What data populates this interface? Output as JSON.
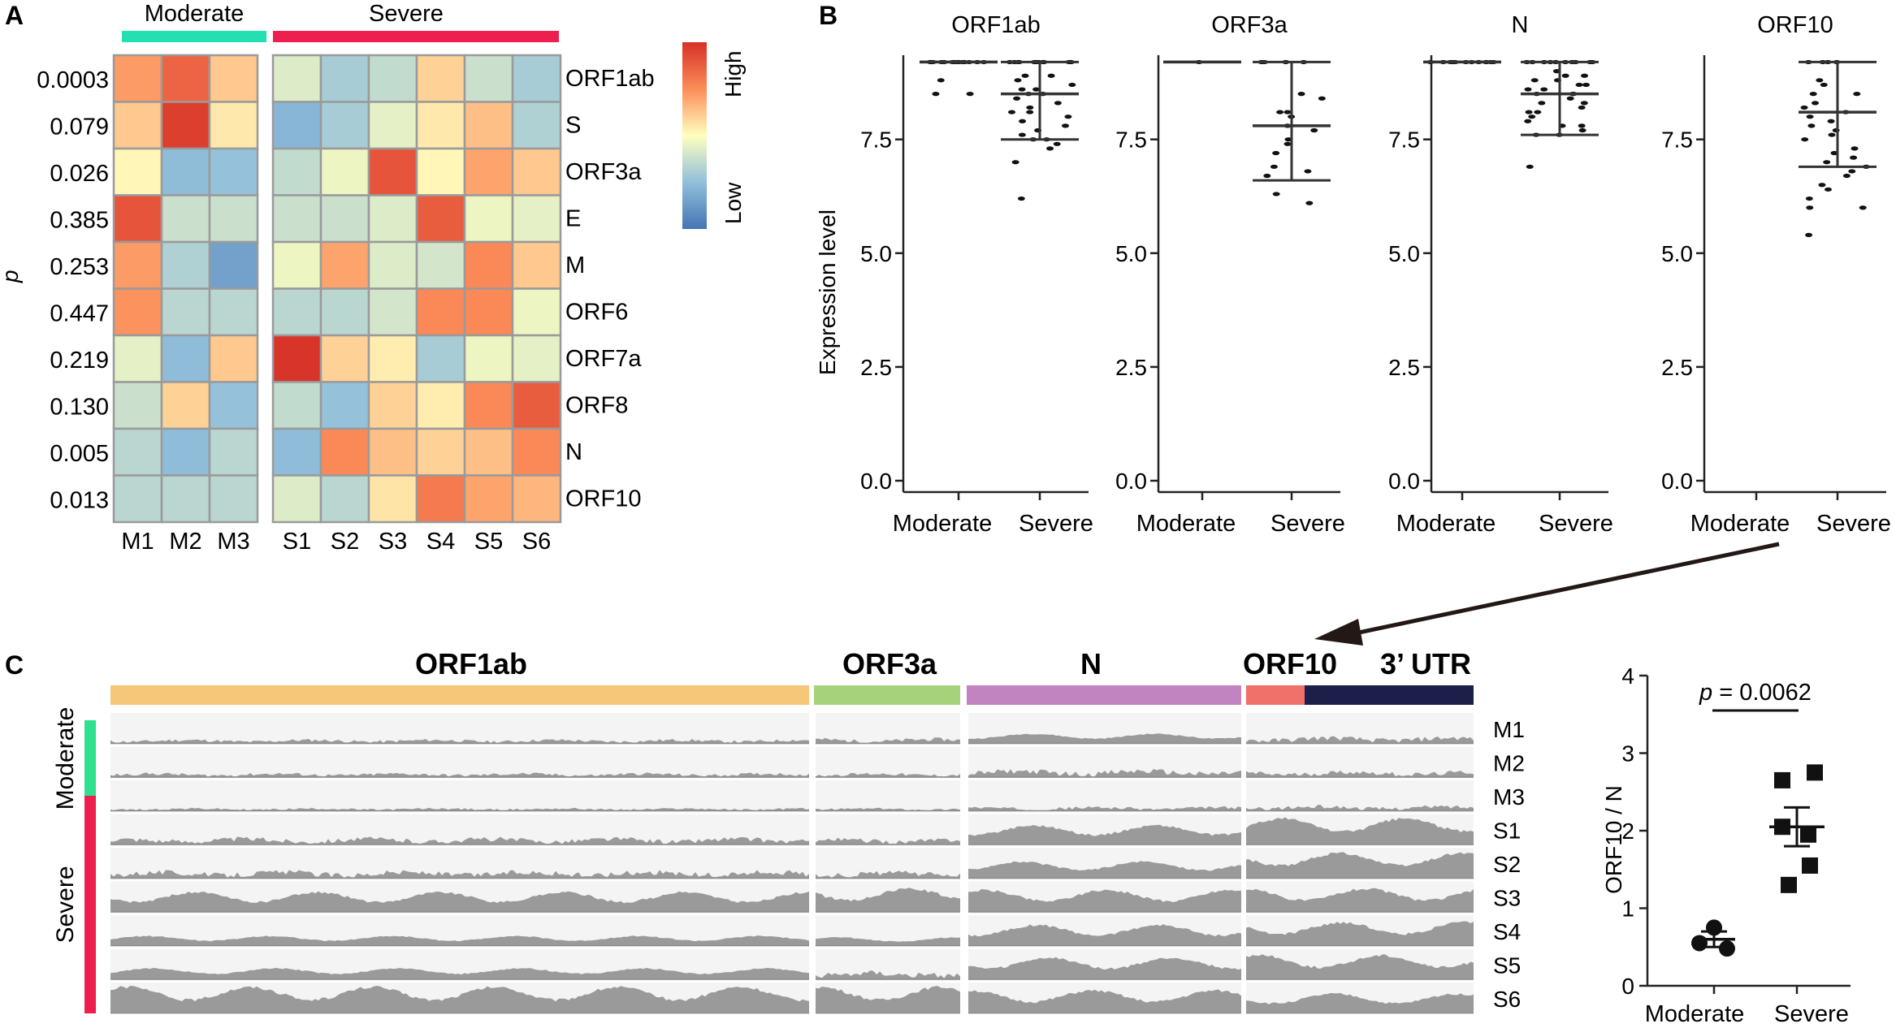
{
  "panels": {
    "a_label": "A",
    "b_label": "B",
    "c_label": "C"
  },
  "heatmap": {
    "group_moderate": "Moderate",
    "group_severe": "Severe",
    "group_moderate_color": "#22e0b0",
    "group_severe_color": "#ee1f4f",
    "p_axis_label": "p",
    "p_values": [
      "0.0003",
      "0.079",
      "0.026",
      "0.385",
      "0.253",
      "0.447",
      "0.219",
      "0.130",
      "0.005",
      "0.013"
    ],
    "genes": [
      "ORF1ab",
      "S",
      "ORF3a",
      "E",
      "M",
      "ORF6",
      "ORF7a",
      "ORF8",
      "N",
      "ORF10"
    ],
    "samples": [
      "M1",
      "M2",
      "M3",
      "S1",
      "S2",
      "S3",
      "S4",
      "S5",
      "S6"
    ],
    "legend_high": "High",
    "legend_low": "Low",
    "values": [
      [
        0.72,
        0.86,
        0.62,
        0.42,
        0.3,
        0.36,
        0.6,
        0.38,
        0.3
      ],
      [
        0.62,
        0.96,
        0.55,
        0.22,
        0.3,
        0.44,
        0.55,
        0.64,
        0.32
      ],
      [
        0.52,
        0.24,
        0.26,
        0.36,
        0.46,
        0.9,
        0.52,
        0.7,
        0.62
      ],
      [
        0.9,
        0.38,
        0.38,
        0.38,
        0.38,
        0.42,
        0.88,
        0.46,
        0.44
      ],
      [
        0.72,
        0.32,
        0.15,
        0.46,
        0.7,
        0.42,
        0.4,
        0.76,
        0.62
      ],
      [
        0.74,
        0.34,
        0.34,
        0.34,
        0.34,
        0.4,
        0.76,
        0.76,
        0.46
      ],
      [
        0.44,
        0.24,
        0.62,
        0.99,
        0.6,
        0.54,
        0.3,
        0.46,
        0.44
      ],
      [
        0.38,
        0.6,
        0.26,
        0.36,
        0.26,
        0.6,
        0.54,
        0.76,
        0.88
      ],
      [
        0.34,
        0.24,
        0.34,
        0.24,
        0.76,
        0.64,
        0.6,
        0.64,
        0.76
      ],
      [
        0.34,
        0.34,
        0.34,
        0.42,
        0.34,
        0.56,
        0.8,
        0.7,
        0.66
      ]
    ]
  },
  "dotplots": {
    "y_label": "Expression level",
    "x_categories": [
      "Moderate",
      "Severe"
    ],
    "y_ticks": [
      "0.0",
      "2.5",
      "5.0",
      "7.5"
    ],
    "ylim": [
      0,
      9.6
    ],
    "plots": [
      {
        "title": "ORF1ab",
        "moderate": {
          "mean": 9.2,
          "sd_low": 9.2,
          "sd_high": 9.2,
          "points": [
            9.2,
            9.2,
            9.2,
            9.2,
            9.2,
            9.2,
            9.2,
            9.2,
            9.2,
            9.2,
            9.2,
            9.2,
            9.2,
            9.2,
            9.2,
            8.8,
            8.5,
            8.5
          ]
        },
        "severe": {
          "mean": 8.5,
          "sd_low": 7.5,
          "sd_high": 9.2,
          "points": [
            9.2,
            9.2,
            9.2,
            9.2,
            9.2,
            9.2,
            9.2,
            9.2,
            9.2,
            9.2,
            9.2,
            9.2,
            8.9,
            8.9,
            8.8,
            8.7,
            8.6,
            8.6,
            8.5,
            8.5,
            8.4,
            8.3,
            8.2,
            8.1,
            8.1,
            8.0,
            7.9,
            7.8,
            7.7,
            7.6,
            7.5,
            7.5,
            7.4,
            7.3,
            7.0,
            6.2
          ]
        }
      },
      {
        "title": "ORF3a",
        "moderate": {
          "mean": 9.2,
          "sd_low": 9.2,
          "sd_high": 9.2,
          "points": [
            9.2
          ]
        },
        "severe": {
          "mean": 7.8,
          "sd_low": 6.6,
          "sd_high": 9.2,
          "points": [
            9.2,
            9.2,
            9.2,
            9.2,
            8.5,
            8.4,
            8.1,
            8.1,
            8.0,
            7.8,
            7.7,
            7.5,
            7.4,
            7.2,
            6.9,
            6.8,
            6.7,
            6.3,
            6.1
          ]
        }
      },
      {
        "title": "N",
        "moderate": {
          "mean": 9.2,
          "sd_low": 9.2,
          "sd_high": 9.2,
          "points": [
            9.2,
            9.2,
            9.2,
            9.2,
            9.2,
            9.2,
            9.2,
            9.2,
            9.2,
            9.2,
            9.2,
            9.2
          ]
        },
        "severe": {
          "mean": 8.5,
          "sd_low": 7.6,
          "sd_high": 9.2,
          "points": [
            9.2,
            9.2,
            9.2,
            9.2,
            9.2,
            9.2,
            9.2,
            9.2,
            9.2,
            9.2,
            9.0,
            8.9,
            8.9,
            8.8,
            8.8,
            8.7,
            8.7,
            8.6,
            8.6,
            8.5,
            8.5,
            8.5,
            8.4,
            8.3,
            8.3,
            8.2,
            8.1,
            8.1,
            8.0,
            7.9,
            7.8,
            7.8,
            7.7,
            7.6,
            7.6,
            6.9
          ]
        }
      },
      {
        "title": "ORF10",
        "moderate": {
          "mean": null,
          "sd_low": null,
          "sd_high": null,
          "points": []
        },
        "severe": {
          "mean": 8.1,
          "sd_low": 6.9,
          "sd_high": 9.2,
          "points": [
            9.2,
            9.2,
            9.2,
            9.2,
            8.8,
            8.7,
            8.5,
            8.5,
            8.3,
            8.2,
            8.1,
            8.0,
            7.9,
            7.8,
            7.7,
            7.6,
            7.5,
            7.3,
            7.2,
            7.1,
            7.0,
            6.9,
            6.8,
            6.7,
            6.5,
            6.4,
            6.2,
            6.0,
            6.0,
            5.4
          ]
        }
      }
    ]
  },
  "coverage": {
    "regions": [
      {
        "label": "ORF1ab",
        "color": "#f6c679"
      },
      {
        "label": "ORF3a",
        "color": "#a6d27c"
      },
      {
        "label": "N",
        "color": "#c283c1"
      },
      {
        "label": "ORF10",
        "color": "#f0706a"
      },
      {
        "label": "3’ UTR",
        "color": "#1c1f4a"
      }
    ],
    "tracks": [
      "M1",
      "M2",
      "M3",
      "S1",
      "S2",
      "S3",
      "S4",
      "S5",
      "S6"
    ],
    "group_moderate": "Moderate",
    "group_severe": "Severe",
    "moderate_color": "#2fe08e",
    "severe_color": "#ee1f4f",
    "depth": [
      [
        0.12,
        0.15,
        0.35,
        0.2
      ],
      [
        0.12,
        0.12,
        0.22,
        0.18
      ],
      [
        0.08,
        0.08,
        0.12,
        0.15
      ],
      [
        0.2,
        0.18,
        0.7,
        0.95
      ],
      [
        0.22,
        0.2,
        0.6,
        0.92
      ],
      [
        0.72,
        0.85,
        0.8,
        0.85
      ],
      [
        0.35,
        0.3,
        0.75,
        0.85
      ],
      [
        0.4,
        0.25,
        0.78,
        0.88
      ],
      [
        0.95,
        0.95,
        0.82,
        0.7
      ]
    ]
  },
  "ratio_plot": {
    "y_label": "ORF10 / N",
    "p_prefix": "p",
    "p_value": " = 0.0062",
    "x_categories": [
      "Moderate",
      "Severe"
    ],
    "y_ticks": [
      "0",
      "1",
      "2",
      "3",
      "4"
    ],
    "ylim": [
      0,
      4
    ],
    "moderate": {
      "mean": 0.6,
      "sem_low": 0.5,
      "sem_high": 0.7,
      "points": [
        0.75,
        0.55,
        0.48
      ]
    },
    "severe": {
      "mean": 2.05,
      "sem_low": 1.8,
      "sem_high": 2.3,
      "points": [
        2.75,
        2.65,
        2.05,
        1.95,
        1.55,
        1.3
      ]
    }
  }
}
